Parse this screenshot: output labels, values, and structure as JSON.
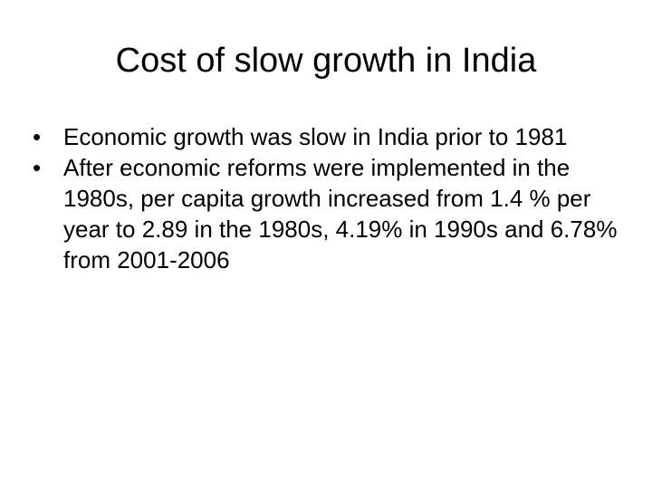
{
  "slide": {
    "title": "Cost of slow growth in India",
    "bullet_marker": "•",
    "bullets": [
      {
        "text": "Economic growth was slow in India prior to 1981"
      },
      {
        "text": "After economic reforms were implemented in the 1980s, per capita growth increased from 1.4 % per year to 2.89 in the 1980s, 4.19% in 1990s and 6.78% from 2001-2006"
      }
    ]
  }
}
